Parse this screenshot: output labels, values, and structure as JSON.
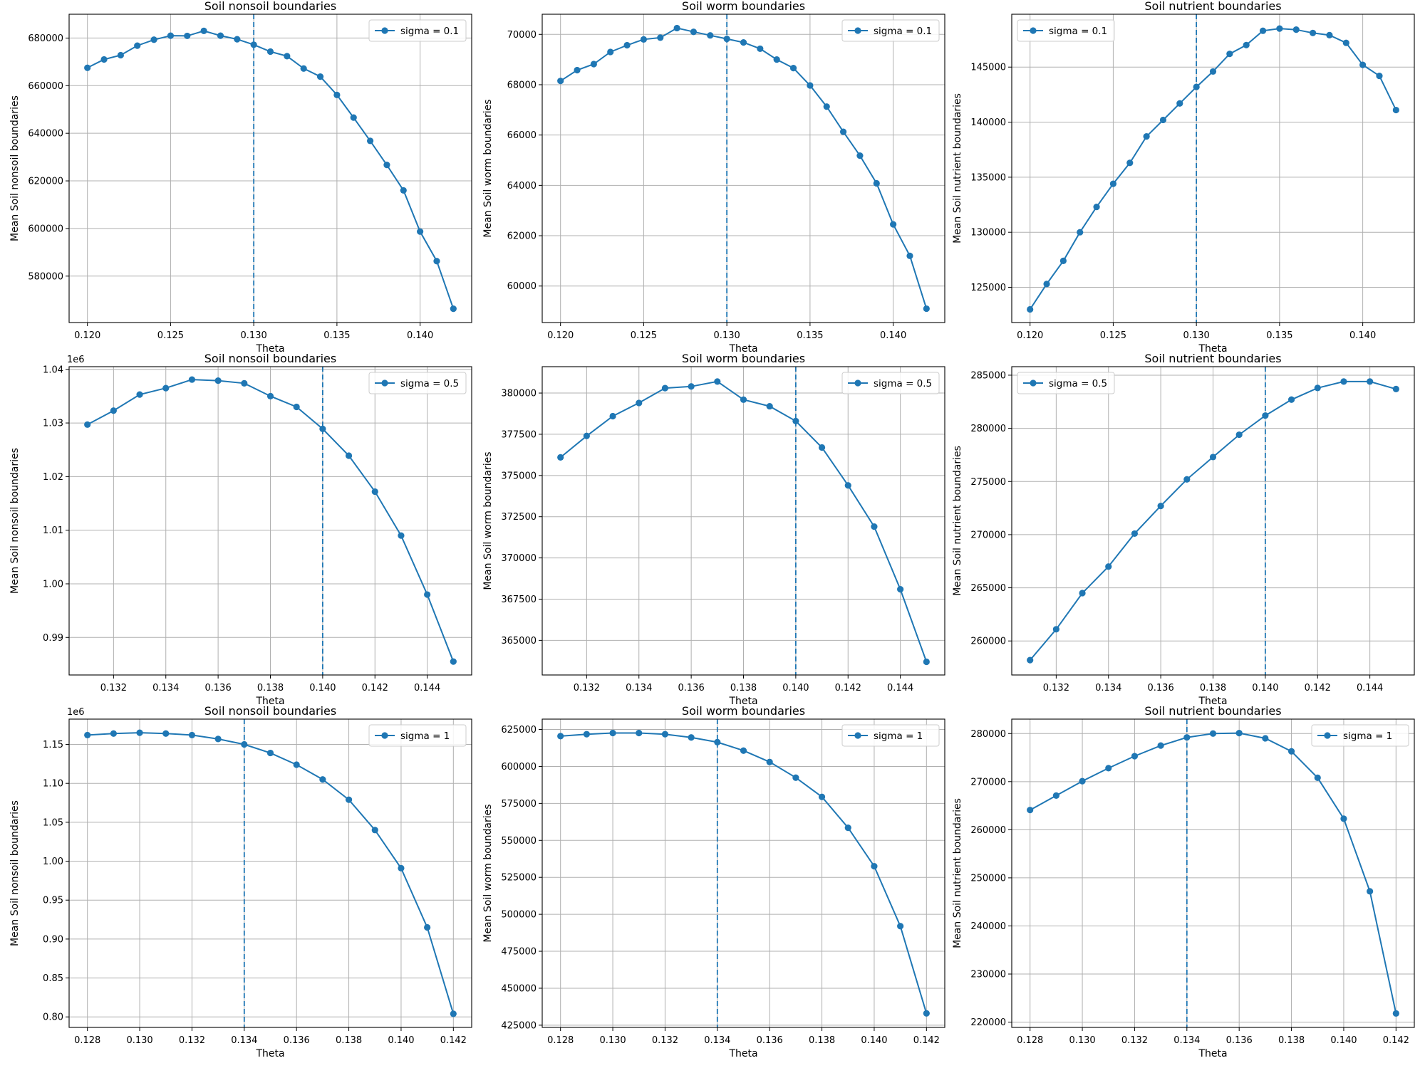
{
  "chart_data": [
    {
      "type": "line",
      "title": "Soil nonsoil boundaries",
      "xlabel": "Theta",
      "ylabel": "Mean Soil nonsoil boundaries",
      "offset_text": "",
      "xlim": [
        0.1189,
        0.1431
      ],
      "ylim": [
        560500,
        690000
      ],
      "xticks": [
        0.12,
        0.125,
        0.13,
        0.135,
        0.14
      ],
      "xtick_labels": [
        "0.120",
        "0.125",
        "0.130",
        "0.135",
        "0.140"
      ],
      "yticks": [
        580000,
        600000,
        620000,
        640000,
        660000,
        680000
      ],
      "ytick_labels": [
        "580000",
        "600000",
        "620000",
        "640000",
        "660000",
        "680000"
      ],
      "vline_x": 0.13,
      "grid": true,
      "legend": "top-right",
      "color": "#1f77b4",
      "series": [
        {
          "name": "sigma = 0.1",
          "x": [
            0.12,
            0.121,
            0.122,
            0.123,
            0.124,
            0.125,
            0.126,
            0.127,
            0.128,
            0.129,
            0.13,
            0.131,
            0.132,
            0.133,
            0.134,
            0.135,
            0.136,
            0.137,
            0.138,
            0.139,
            0.14,
            0.141,
            0.142
          ],
          "y": [
            667500,
            671000,
            672800,
            676800,
            679300,
            681000,
            680900,
            683000,
            681000,
            679500,
            677200,
            674300,
            672400,
            667200,
            663800,
            656100,
            646600,
            636800,
            626700,
            616000,
            598700,
            586300,
            566300
          ]
        }
      ]
    },
    {
      "type": "line",
      "title": "Soil worm boundaries",
      "xlabel": "Theta",
      "ylabel": "Mean Soil worm boundaries",
      "offset_text": "",
      "xlim": [
        0.1189,
        0.1431
      ],
      "ylim": [
        58550,
        70800
      ],
      "xticks": [
        0.12,
        0.125,
        0.13,
        0.135,
        0.14
      ],
      "xtick_labels": [
        "0.120",
        "0.125",
        "0.130",
        "0.135",
        "0.140"
      ],
      "yticks": [
        60000,
        62000,
        64000,
        66000,
        68000,
        70000
      ],
      "ytick_labels": [
        "60000",
        "62000",
        "64000",
        "66000",
        "68000",
        "70000"
      ],
      "vline_x": 0.13,
      "grid": true,
      "legend": "top-right",
      "color": "#1f77b4",
      "series": [
        {
          "name": "sigma = 0.1",
          "x": [
            0.12,
            0.121,
            0.122,
            0.123,
            0.124,
            0.125,
            0.126,
            0.127,
            0.128,
            0.129,
            0.13,
            0.131,
            0.132,
            0.133,
            0.134,
            0.135,
            0.136,
            0.137,
            0.138,
            0.139,
            0.14,
            0.141,
            0.142
          ],
          "y": [
            68150,
            68580,
            68820,
            69300,
            69570,
            69800,
            69870,
            70250,
            70100,
            69960,
            69820,
            69680,
            69430,
            69000,
            68660,
            67970,
            67130,
            66130,
            65180,
            64080,
            62450,
            61200,
            59100
          ]
        }
      ]
    },
    {
      "type": "line",
      "title": "Soil nutrient boundaries",
      "xlabel": "Theta",
      "ylabel": "Mean Soil nutrient boundaries",
      "offset_text": "",
      "xlim": [
        0.1189,
        0.1431
      ],
      "ylim": [
        121800,
        149800
      ],
      "xticks": [
        0.12,
        0.125,
        0.13,
        0.135,
        0.14
      ],
      "xtick_labels": [
        "0.120",
        "0.125",
        "0.130",
        "0.135",
        "0.140"
      ],
      "yticks": [
        125000,
        130000,
        135000,
        140000,
        145000
      ],
      "ytick_labels": [
        "125000",
        "130000",
        "135000",
        "140000",
        "145000"
      ],
      "vline_x": 0.13,
      "grid": true,
      "legend": "top-left",
      "color": "#1f77b4",
      "series": [
        {
          "name": "sigma = 0.1",
          "x": [
            0.12,
            0.121,
            0.122,
            0.123,
            0.124,
            0.125,
            0.126,
            0.127,
            0.128,
            0.129,
            0.13,
            0.131,
            0.132,
            0.133,
            0.134,
            0.135,
            0.136,
            0.137,
            0.138,
            0.139,
            0.14,
            0.141,
            0.142
          ],
          "y": [
            123000,
            125300,
            127400,
            130000,
            132300,
            134400,
            136300,
            138700,
            140200,
            141700,
            143200,
            144600,
            146200,
            147000,
            148300,
            148500,
            148400,
            148100,
            147900,
            147200,
            145200,
            144200,
            141100
          ]
        }
      ]
    },
    {
      "type": "line",
      "title": "Soil nonsoil boundaries",
      "xlabel": "Theta",
      "ylabel": "Mean Soil nonsoil boundaries",
      "offset_text": "1e6",
      "xlim": [
        0.1303,
        0.1457
      ],
      "ylim": [
        0.983,
        1.0405
      ],
      "xticks": [
        0.132,
        0.134,
        0.136,
        0.138,
        0.14,
        0.142,
        0.144
      ],
      "xtick_labels": [
        "0.132",
        "0.134",
        "0.136",
        "0.138",
        "0.140",
        "0.142",
        "0.144"
      ],
      "yticks": [
        0.99,
        1.0,
        1.01,
        1.02,
        1.03,
        1.04
      ],
      "ytick_labels": [
        "0.99",
        "1.00",
        "1.01",
        "1.02",
        "1.03",
        "1.04"
      ],
      "vline_x": 0.14,
      "grid": true,
      "legend": "top-right",
      "color": "#1f77b4",
      "series": [
        {
          "name": "sigma = 0.5",
          "x": [
            0.131,
            0.132,
            0.133,
            0.134,
            0.135,
            0.136,
            0.137,
            0.138,
            0.139,
            0.14,
            0.141,
            0.142,
            0.143,
            0.144,
            0.145
          ],
          "y": [
            1.0297,
            1.0323,
            1.0353,
            1.0365,
            1.0381,
            1.0379,
            1.0374,
            1.035,
            1.033,
            1.0289,
            1.0239,
            1.0172,
            1.009,
            0.998,
            0.9855
          ]
        }
      ]
    },
    {
      "type": "line",
      "title": "Soil worm boundaries",
      "xlabel": "Theta",
      "ylabel": "Mean Soil worm boundaries",
      "offset_text": "",
      "xlim": [
        0.1303,
        0.1457
      ],
      "ylim": [
        362900,
        381600
      ],
      "xticks": [
        0.132,
        0.134,
        0.136,
        0.138,
        0.14,
        0.142,
        0.144
      ],
      "xtick_labels": [
        "0.132",
        "0.134",
        "0.136",
        "0.138",
        "0.140",
        "0.142",
        "0.144"
      ],
      "yticks": [
        365000,
        367500,
        370000,
        372500,
        375000,
        377500,
        380000
      ],
      "ytick_labels": [
        "365000",
        "367500",
        "370000",
        "372500",
        "375000",
        "377500",
        "380000"
      ],
      "vline_x": 0.14,
      "grid": true,
      "legend": "top-right",
      "color": "#1f77b4",
      "series": [
        {
          "name": "sigma = 0.5",
          "x": [
            0.131,
            0.132,
            0.133,
            0.134,
            0.135,
            0.136,
            0.137,
            0.138,
            0.139,
            0.14,
            0.141,
            0.142,
            0.143,
            0.144,
            0.145
          ],
          "y": [
            376100,
            377400,
            378600,
            379400,
            380300,
            380400,
            380700,
            379600,
            379200,
            378300,
            376700,
            374400,
            371900,
            368100,
            363700
          ]
        }
      ]
    },
    {
      "type": "line",
      "title": "Soil nutrient boundaries",
      "xlabel": "Theta",
      "ylabel": "Mean Soil nutrient boundaries",
      "offset_text": "",
      "xlim": [
        0.1303,
        0.1457
      ],
      "ylim": [
        256800,
        285800
      ],
      "xticks": [
        0.132,
        0.134,
        0.136,
        0.138,
        0.14,
        0.142,
        0.144
      ],
      "xtick_labels": [
        "0.132",
        "0.134",
        "0.136",
        "0.138",
        "0.140",
        "0.142",
        "0.144"
      ],
      "yticks": [
        260000,
        265000,
        270000,
        275000,
        280000,
        285000
      ],
      "ytick_labels": [
        "260000",
        "265000",
        "270000",
        "275000",
        "280000",
        "285000"
      ],
      "vline_x": 0.14,
      "grid": true,
      "legend": "top-left",
      "color": "#1f77b4",
      "series": [
        {
          "name": "sigma = 0.5",
          "x": [
            0.131,
            0.132,
            0.133,
            0.134,
            0.135,
            0.136,
            0.137,
            0.138,
            0.139,
            0.14,
            0.141,
            0.142,
            0.143,
            0.144,
            0.145
          ],
          "y": [
            258200,
            261100,
            264500,
            267000,
            270100,
            272700,
            275200,
            277300,
            279400,
            281200,
            282700,
            283800,
            284400,
            284400,
            283700
          ]
        }
      ]
    },
    {
      "type": "line",
      "title": "Soil nonsoil boundaries",
      "xlabel": "Theta",
      "ylabel": "Mean Soil nonsoil boundaries",
      "offset_text": "1e6",
      "xlim": [
        0.1273,
        0.1427
      ],
      "ylim": [
        0.7865,
        1.1825
      ],
      "xticks": [
        0.128,
        0.13,
        0.132,
        0.134,
        0.136,
        0.138,
        0.14,
        0.142
      ],
      "xtick_labels": [
        "0.128",
        "0.130",
        "0.132",
        "0.134",
        "0.136",
        "0.138",
        "0.140",
        "0.142"
      ],
      "yticks": [
        0.8,
        0.85,
        0.9,
        0.95,
        1.0,
        1.05,
        1.1,
        1.15
      ],
      "ytick_labels": [
        "0.80",
        "0.85",
        "0.90",
        "0.95",
        "1.00",
        "1.05",
        "1.10",
        "1.15"
      ],
      "vline_x": 0.134,
      "grid": true,
      "legend": "top-right",
      "color": "#1f77b4",
      "series": [
        {
          "name": "sigma = 1",
          "x": [
            0.128,
            0.129,
            0.13,
            0.131,
            0.132,
            0.133,
            0.134,
            0.135,
            0.136,
            0.137,
            0.138,
            0.139,
            0.14,
            0.141,
            0.142
          ],
          "y": [
            1.162,
            1.164,
            1.165,
            1.164,
            1.162,
            1.157,
            1.15,
            1.139,
            1.124,
            1.105,
            1.079,
            1.04,
            0.991,
            0.915,
            0.804
          ]
        }
      ]
    },
    {
      "type": "line",
      "title": "Soil worm boundaries",
      "xlabel": "Theta",
      "ylabel": "Mean Soil worm boundaries",
      "offset_text": "",
      "xlim": [
        0.1273,
        0.1427
      ],
      "ylim": [
        423500,
        632000
      ],
      "xticks": [
        0.128,
        0.13,
        0.132,
        0.134,
        0.136,
        0.138,
        0.14,
        0.142
      ],
      "xtick_labels": [
        "0.128",
        "0.130",
        "0.132",
        "0.134",
        "0.136",
        "0.138",
        "0.140",
        "0.142"
      ],
      "yticks": [
        425000,
        450000,
        475000,
        500000,
        525000,
        550000,
        575000,
        600000,
        625000
      ],
      "ytick_labels": [
        "425000",
        "450000",
        "475000",
        "500000",
        "525000",
        "550000",
        "575000",
        "600000",
        "625000"
      ],
      "vline_x": 0.134,
      "grid": true,
      "legend": "top-right",
      "color": "#1f77b4",
      "series": [
        {
          "name": "sigma = 1",
          "x": [
            0.128,
            0.129,
            0.13,
            0.131,
            0.132,
            0.133,
            0.134,
            0.135,
            0.136,
            0.137,
            0.138,
            0.139,
            0.14,
            0.141,
            0.142
          ],
          "y": [
            620500,
            621800,
            622600,
            622600,
            621800,
            619600,
            616400,
            610700,
            603000,
            592400,
            579400,
            558500,
            532500,
            492000,
            433000
          ]
        }
      ]
    },
    {
      "type": "line",
      "title": "Soil nutrient boundaries",
      "xlabel": "Theta",
      "ylabel": "Mean Soil nutrient boundaries",
      "offset_text": "",
      "xlim": [
        0.1273,
        0.1427
      ],
      "ylim": [
        218900,
        283000
      ],
      "xticks": [
        0.128,
        0.13,
        0.132,
        0.134,
        0.136,
        0.138,
        0.14,
        0.142
      ],
      "xtick_labels": [
        "0.128",
        "0.130",
        "0.132",
        "0.134",
        "0.136",
        "0.138",
        "0.140",
        "0.142"
      ],
      "yticks": [
        220000,
        230000,
        240000,
        250000,
        260000,
        270000,
        280000
      ],
      "ytick_labels": [
        "220000",
        "230000",
        "240000",
        "250000",
        "260000",
        "270000",
        "280000"
      ],
      "vline_x": 0.134,
      "grid": true,
      "legend": "top-right",
      "color": "#1f77b4",
      "series": [
        {
          "name": "sigma = 1",
          "x": [
            0.128,
            0.129,
            0.13,
            0.131,
            0.132,
            0.133,
            0.134,
            0.135,
            0.136,
            0.137,
            0.138,
            0.139,
            0.14,
            0.141,
            0.142
          ],
          "y": [
            264100,
            267100,
            270100,
            272800,
            275300,
            277500,
            279200,
            280000,
            280100,
            279000,
            276300,
            270800,
            262300,
            247200,
            221800
          ]
        }
      ]
    }
  ]
}
